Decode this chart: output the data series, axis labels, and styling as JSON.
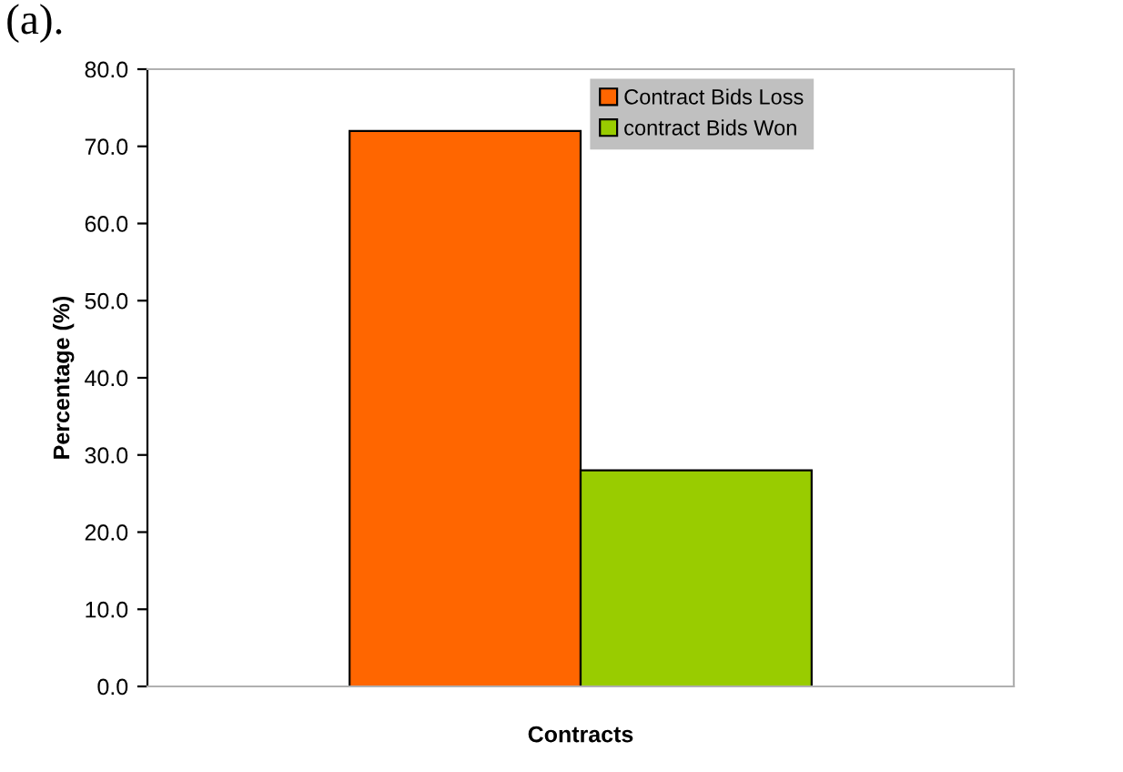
{
  "chart_data": {
    "type": "bar",
    "title": "(a).",
    "xlabel": "Contracts",
    "ylabel": "Percentage (%)",
    "categories": [
      null
    ],
    "series": [
      {
        "name": "Contract Bids Loss",
        "color": "#ff6600",
        "values": [
          72.0
        ]
      },
      {
        "name": "contract Bids Won",
        "color": "#99cc00",
        "values": [
          28.0
        ]
      }
    ],
    "ylim": [
      0,
      80
    ],
    "yticks": [
      {
        "value": 0,
        "label": "0.0"
      },
      {
        "value": 10,
        "label": "10.0"
      },
      {
        "value": 20,
        "label": "20.0"
      },
      {
        "value": 30,
        "label": "30.0"
      },
      {
        "value": 40,
        "label": "40.0"
      },
      {
        "value": 50,
        "label": "50.0"
      },
      {
        "value": 60,
        "label": "60.0"
      },
      {
        "value": 70,
        "label": "70.0"
      },
      {
        "value": 80,
        "label": "80.0"
      }
    ],
    "grid": false,
    "legend": "top"
  }
}
